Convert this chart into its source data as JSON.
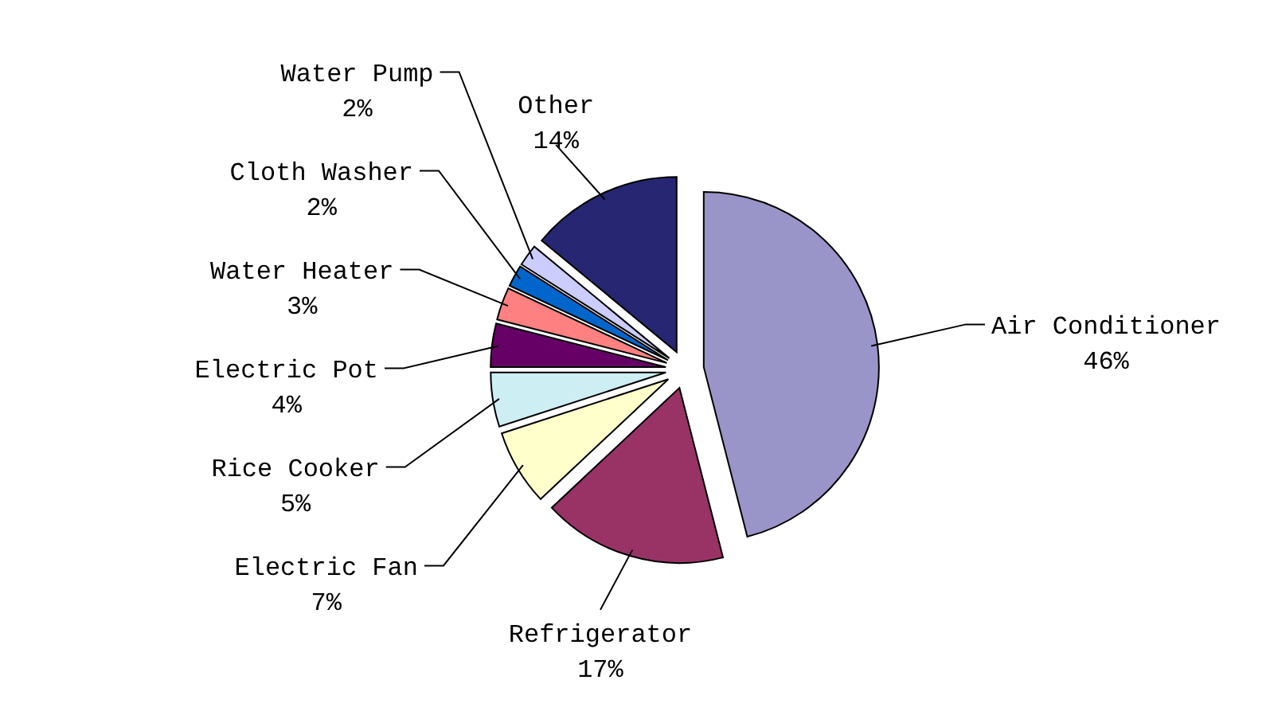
{
  "chart_data": {
    "type": "pie",
    "categories": [
      "Air Conditioner",
      "Refrigerator",
      "Electric Fan",
      "Rice Cooker",
      "Electric Pot",
      "Water Heater",
      "Cloth Washer",
      "Water Pump",
      "Other"
    ],
    "values": [
      46,
      17,
      7,
      5,
      4,
      3,
      2,
      2,
      14
    ],
    "value_labels": [
      "46%",
      "17%",
      "7%",
      "5%",
      "4%",
      "3%",
      "2%",
      "2%",
      "14%"
    ],
    "colors": [
      "#9995c9",
      "#993366",
      "#ffffcc",
      "#cdeef2",
      "#660066",
      "#ff8080",
      "#0066cc",
      "#ccccff",
      "#262673"
    ]
  }
}
